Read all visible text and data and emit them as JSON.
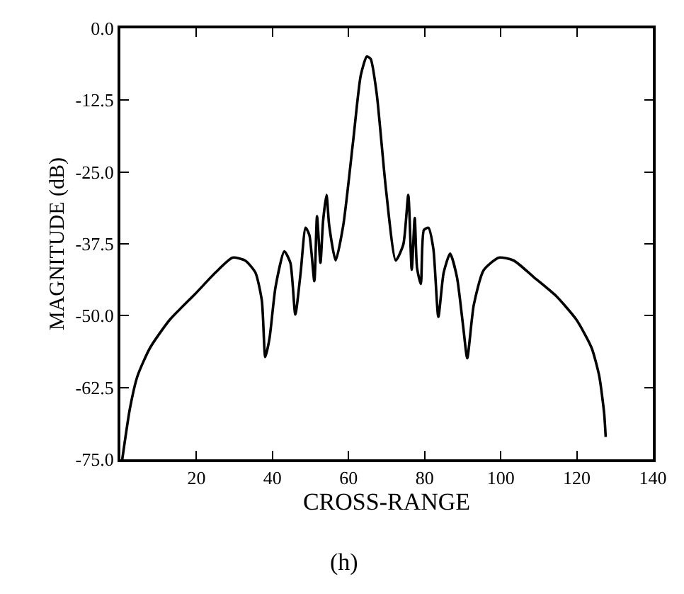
{
  "chart_data": {
    "type": "line",
    "xlabel": "CROSS-RANGE",
    "ylabel": "MAGNITUDE (dB)",
    "annotations": [
      "(h)"
    ],
    "xlim": [
      0,
      140
    ],
    "xticks": [
      20,
      40,
      60,
      80,
      100,
      120,
      140
    ],
    "ylim": [
      -75,
      0
    ],
    "yticks": [
      {
        "value": 0,
        "label": "0.0"
      },
      {
        "value": -12.5,
        "label": "-12.5"
      },
      {
        "value": -25,
        "label": "-25.0"
      },
      {
        "value": -37.5,
        "label": "-37.5"
      },
      {
        "value": -50,
        "label": "-50.0"
      },
      {
        "value": -62.5,
        "label": "-62.5"
      },
      {
        "value": -75,
        "label": "-75.0"
      }
    ],
    "series": [
      {
        "color": "#000000",
        "x": [
          0.5,
          2.5,
          4.5,
          7.8,
          13,
          19.7,
          25,
          29.5,
          32.8,
          35.5,
          37.2,
          38.1,
          39.2,
          40.8,
          43.1,
          44.7,
          46,
          47.4,
          48.7,
          49.7,
          51,
          51.7,
          52.6,
          53.3,
          54.2,
          54.9,
          56.6,
          58.6,
          61.2,
          63.2,
          64.8,
          65.8,
          67.4,
          69.8,
          72.4,
          74.4,
          75.7,
          76.6,
          77.4,
          78,
          79,
          79.8,
          81,
          82.3,
          83.6,
          85,
          86.7,
          88.5,
          90.2,
          91.2,
          92.9,
          95.5,
          99.5,
          103.4,
          108.7,
          114.6,
          119.9,
          123.9,
          125.9,
          127.2,
          127.6
        ],
        "values": [
          -75,
          -66.2,
          -60.5,
          -55.6,
          -50.7,
          -46.2,
          -42.5,
          -39.9,
          -40.4,
          -42.5,
          -47.4,
          -57.2,
          -54,
          -45,
          -38.8,
          -40.8,
          -49.8,
          -42.5,
          -34.7,
          -36,
          -44,
          -32.7,
          -40.8,
          -33.5,
          -29,
          -34.3,
          -40.4,
          -34.3,
          -19.6,
          -8.2,
          -4.9,
          -5.3,
          -11.4,
          -27.8,
          -40.4,
          -37.6,
          -29,
          -42,
          -33,
          -41.7,
          -44.5,
          -35.1,
          -34.7,
          -38.4,
          -50.2,
          -42.5,
          -39.2,
          -43.3,
          -52.3,
          -57.4,
          -48.2,
          -42.1,
          -39.9,
          -40.4,
          -43.3,
          -46.6,
          -50.7,
          -55.6,
          -60.5,
          -67,
          -71.1
        ]
      }
    ]
  }
}
